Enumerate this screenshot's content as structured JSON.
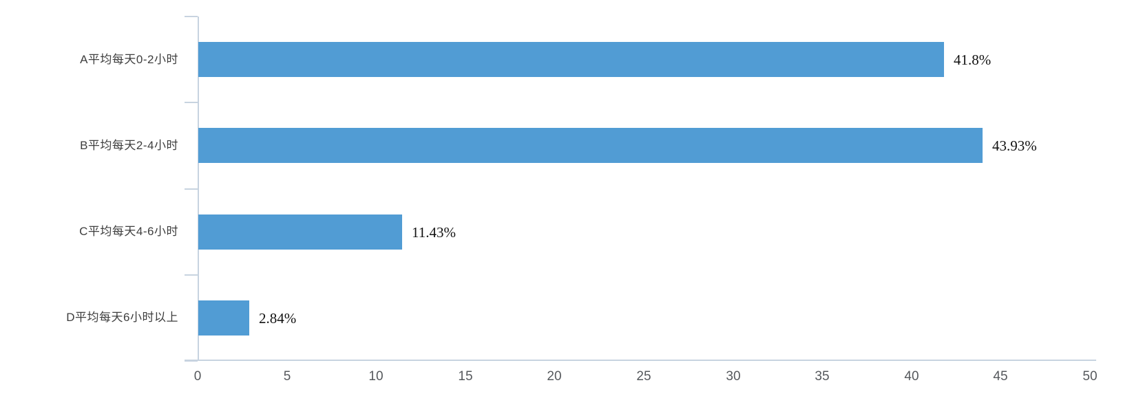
{
  "chart_data": {
    "type": "bar",
    "orientation": "horizontal",
    "title": "",
    "categories": [
      "A平均每天0-2小时",
      "B平均每天2-4小时",
      "C平均每天4-6小时",
      "D平均每天6小时以上"
    ],
    "values": [
      41.8,
      43.93,
      11.43,
      2.84
    ],
    "value_labels": [
      "41.8%",
      "43.93%",
      "11.43%",
      "2.84%"
    ],
    "x_ticks": [
      "0",
      "5",
      "10",
      "15",
      "20",
      "25",
      "30",
      "35",
      "40",
      "45",
      "50"
    ],
    "xlim": [
      0,
      50
    ],
    "grid": false,
    "legend": null,
    "bar_color": "#519cd4",
    "axis_color": "#c7d3e0",
    "category_label_color": "#3d3d3d",
    "tick_label_color": "#55585c",
    "value_label_color": "#111111"
  }
}
